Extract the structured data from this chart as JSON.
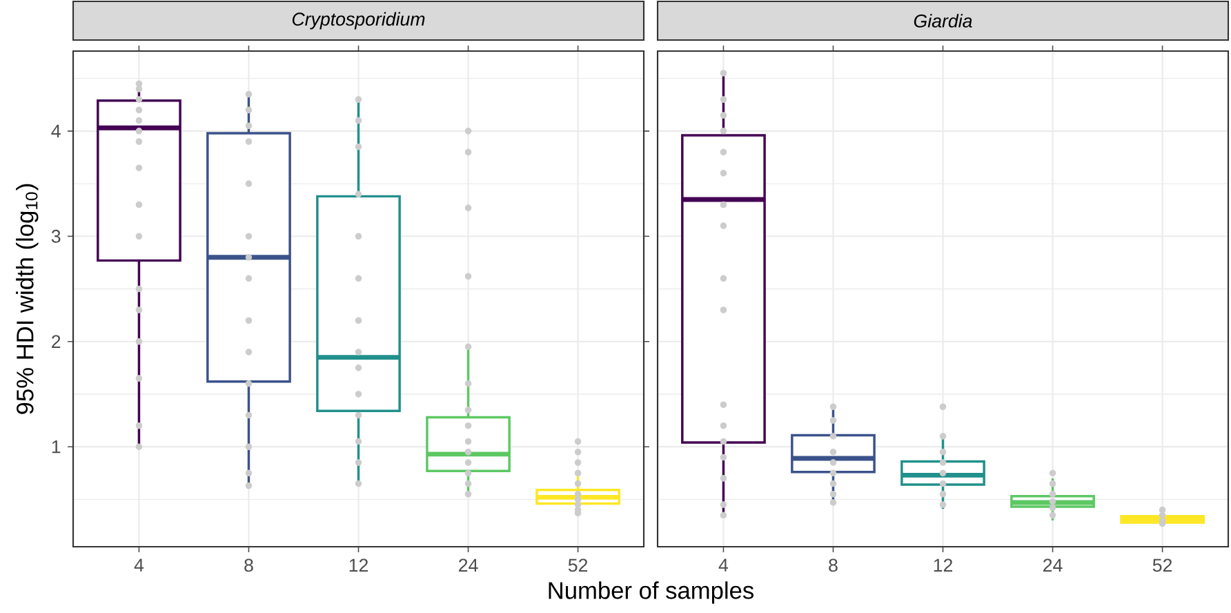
{
  "chart_data": [
    {
      "type": "box",
      "title": "Cryptosporidium",
      "xlabel": "Number of samples",
      "ylabel": "95% HDI width (log$_{10}$)",
      "categories": [
        "4",
        "8",
        "12",
        "24",
        "52"
      ],
      "ylim": [
        0.05,
        4.76
      ],
      "yticks": [
        1,
        2,
        3,
        4
      ],
      "grid": true,
      "colors": [
        "#440154",
        "#3b528b",
        "#21908c",
        "#5dc863",
        "#fde725"
      ],
      "boxes": [
        {
          "low": 1.0,
          "q1": 2.77,
          "median": 4.03,
          "q3": 4.29,
          "high": 4.46
        },
        {
          "low": 0.63,
          "q1": 1.62,
          "median": 2.8,
          "q3": 3.98,
          "high": 4.35
        },
        {
          "low": 0.65,
          "q1": 1.34,
          "median": 1.85,
          "q3": 3.38,
          "high": 4.32
        },
        {
          "low": 0.53,
          "q1": 0.77,
          "median": 0.93,
          "q3": 1.28,
          "high": 1.95
        },
        {
          "low": 0.36,
          "q1": 0.46,
          "median": 0.52,
          "q3": 0.59,
          "high": 0.73
        }
      ],
      "series": [
        {
          "type": "scatter",
          "color": "#cccccc",
          "x": [
            "4",
            "4",
            "4",
            "4",
            "4",
            "4",
            "4",
            "4",
            "4",
            "4",
            "4",
            "4",
            "4",
            "4",
            "4",
            "4",
            "8",
            "8",
            "8",
            "8",
            "8",
            "8",
            "8",
            "8",
            "8",
            "8",
            "8",
            "8",
            "8",
            "8",
            "8",
            "12",
            "12",
            "12",
            "12",
            "12",
            "12",
            "12",
            "12",
            "12",
            "12",
            "12",
            "12",
            "12",
            "12",
            "24",
            "24",
            "24",
            "24",
            "24",
            "24",
            "24",
            "24",
            "24",
            "24",
            "24",
            "24",
            "24",
            "24",
            "52",
            "52",
            "52",
            "52",
            "52",
            "52",
            "52",
            "52",
            "52",
            "52"
          ],
          "values": [
            4.45,
            4.4,
            4.3,
            4.2,
            4.1,
            4.0,
            3.9,
            3.65,
            3.3,
            3.0,
            2.5,
            2.3,
            2.0,
            1.65,
            1.2,
            1.0,
            4.35,
            4.2,
            4.05,
            3.9,
            3.5,
            3.0,
            2.8,
            2.6,
            2.2,
            1.9,
            1.6,
            1.3,
            1.0,
            0.75,
            0.63,
            4.3,
            4.1,
            3.85,
            3.4,
            3.0,
            2.6,
            2.2,
            1.9,
            1.75,
            1.5,
            1.3,
            1.05,
            0.85,
            0.65,
            4.0,
            3.8,
            3.27,
            2.62,
            1.95,
            1.6,
            1.35,
            1.2,
            1.05,
            0.95,
            0.85,
            0.75,
            0.65,
            0.55,
            1.05,
            0.95,
            0.85,
            0.75,
            0.65,
            0.55,
            0.5,
            0.45,
            0.4,
            0.37
          ]
        }
      ]
    },
    {
      "type": "box",
      "title": "Giardia",
      "categories": [
        "4",
        "8",
        "12",
        "24",
        "52"
      ],
      "ylim": [
        0.05,
        4.76
      ],
      "yticks": [
        1,
        2,
        3,
        4
      ],
      "tick_labels": "x",
      "grid": true,
      "colors": [
        "#440154",
        "#3b528b",
        "#21908c",
        "#5dc863",
        "#fde725"
      ],
      "boxes": [
        {
          "low": 0.34,
          "q1": 1.04,
          "median": 3.35,
          "q3": 3.96,
          "high": 4.55
        },
        {
          "low": 0.47,
          "q1": 0.76,
          "median": 0.89,
          "q3": 1.11,
          "high": 1.39
        },
        {
          "low": 0.41,
          "q1": 0.64,
          "median": 0.73,
          "q3": 0.86,
          "high": 1.08
        },
        {
          "low": 0.3,
          "q1": 0.43,
          "median": 0.47,
          "q3": 0.53,
          "high": 0.7
        },
        {
          "low": 0.24,
          "q1": 0.28,
          "median": 0.31,
          "q3": 0.34,
          "high": 0.42
        }
      ],
      "series": [
        {
          "type": "scatter",
          "color": "#cccccc",
          "x": [
            "4",
            "4",
            "4",
            "4",
            "4",
            "4",
            "4",
            "4",
            "4",
            "4",
            "4",
            "4",
            "4",
            "4",
            "4",
            "4",
            "4",
            "8",
            "8",
            "8",
            "8",
            "8",
            "8",
            "8",
            "8",
            "8",
            "12",
            "12",
            "12",
            "12",
            "12",
            "12",
            "12",
            "12",
            "24",
            "24",
            "24",
            "24",
            "24",
            "24",
            "52",
            "52",
            "52",
            "52"
          ],
          "values": [
            4.55,
            4.3,
            4.15,
            4.0,
            3.8,
            3.6,
            3.3,
            3.1,
            2.6,
            2.3,
            1.4,
            1.2,
            1.05,
            0.9,
            0.7,
            0.45,
            0.35,
            1.38,
            1.25,
            1.1,
            0.95,
            0.85,
            0.75,
            0.65,
            0.55,
            0.47,
            1.38,
            1.1,
            0.95,
            0.85,
            0.75,
            0.65,
            0.55,
            0.45,
            0.75,
            0.65,
            0.55,
            0.48,
            0.42,
            0.35,
            0.4,
            0.35,
            0.3,
            0.27
          ]
        }
      ]
    }
  ]
}
